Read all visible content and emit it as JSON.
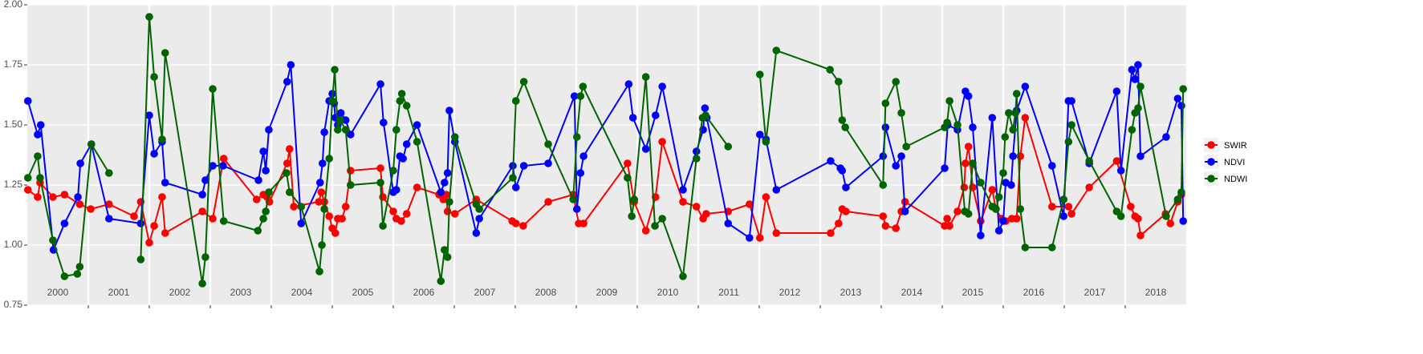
{
  "chart_data": {
    "type": "line",
    "xlim": [
      2000,
      2019
    ],
    "ylim": [
      0.75,
      2.0
    ],
    "yticks": [
      {
        "value": 0.75,
        "label": "0.75"
      },
      {
        "value": 1.0,
        "label": "1.00"
      },
      {
        "value": 1.25,
        "label": "1.25"
      },
      {
        "value": 1.5,
        "label": "1.50"
      },
      {
        "value": 1.75,
        "label": "1.75"
      },
      {
        "value": 2.0,
        "label": "2.00"
      }
    ],
    "xgrid": [
      2001,
      2002,
      2003,
      2004,
      2005,
      2006,
      2007,
      2008,
      2009,
      2010,
      2011,
      2012,
      2013,
      2014,
      2015,
      2016,
      2017,
      2018
    ],
    "x_labels": [
      "2000",
      "2001",
      "2002",
      "2003",
      "2004",
      "2005",
      "2006",
      "2007",
      "2008",
      "2009",
      "2010",
      "2011",
      "2012",
      "2013",
      "2014",
      "2015",
      "2016",
      "2017",
      "2018"
    ],
    "grid": true,
    "legend": "right",
    "series": [
      {
        "name": "SWIR",
        "color": "#ff0000",
        "x": [
          2000.01,
          2000.17,
          2000.21,
          2000.42,
          2000.61,
          2000.86,
          2001.04,
          2001.34,
          2001.75,
          2001.86,
          2002.0,
          2002.08,
          2002.21,
          2002.26,
          2002.87,
          2003.04,
          2003.22,
          2003.76,
          2003.87,
          2003.93,
          2003.97,
          2004.26,
          2004.3,
          2004.37,
          2004.78,
          2004.82,
          2004.87,
          2004.95,
          2005.0,
          2005.05,
          2005.09,
          2005.16,
          2005.22,
          2005.3,
          2005.79,
          2005.83,
          2006.0,
          2006.05,
          2006.13,
          2006.22,
          2006.39,
          2006.75,
          2006.82,
          2006.87,
          2006.89,
          2007.01,
          2007.36,
          2007.95,
          2008.01,
          2008.13,
          2008.54,
          2008.95,
          2009.04,
          2009.12,
          2009.84,
          2009.95,
          2010.14,
          2010.3,
          2010.41,
          2010.75,
          2010.97,
          2011.08,
          2011.13,
          2011.49,
          2011.84,
          2012.01,
          2012.11,
          2012.28,
          2013.17,
          2013.3,
          2013.36,
          2013.42,
          2014.03,
          2014.07,
          2014.24,
          2014.33,
          2014.39,
          2015.04,
          2015.08,
          2015.12,
          2015.25,
          2015.36,
          2015.38,
          2015.43,
          2015.5,
          2015.63,
          2015.82,
          2015.88,
          2015.97,
          2016.04,
          2016.14,
          2016.22,
          2016.28,
          2016.36,
          2016.8,
          2017.07,
          2017.12,
          2017.41,
          2017.86,
          2018.09,
          2018.16,
          2018.21,
          2018.25,
          2018.66,
          2018.74,
          2018.86,
          2018.92
        ],
        "values": [
          1.23,
          1.2,
          1.26,
          1.2,
          1.21,
          1.17,
          1.15,
          1.17,
          1.12,
          1.18,
          1.01,
          1.08,
          1.2,
          1.05,
          1.14,
          1.11,
          1.36,
          1.19,
          1.21,
          1.2,
          1.18,
          1.34,
          1.4,
          1.16,
          1.18,
          1.22,
          1.18,
          1.12,
          1.07,
          1.05,
          1.11,
          1.11,
          1.16,
          1.31,
          1.32,
          1.2,
          1.14,
          1.11,
          1.1,
          1.13,
          1.24,
          1.21,
          1.19,
          1.21,
          1.14,
          1.13,
          1.19,
          1.1,
          1.09,
          1.08,
          1.18,
          1.21,
          1.09,
          1.09,
          1.34,
          1.18,
          1.06,
          1.2,
          1.43,
          1.18,
          1.16,
          1.11,
          1.13,
          1.14,
          1.17,
          1.03,
          1.2,
          1.05,
          1.05,
          1.09,
          1.15,
          1.14,
          1.12,
          1.08,
          1.07,
          1.14,
          1.18,
          1.08,
          1.11,
          1.08,
          1.14,
          1.24,
          1.34,
          1.41,
          1.24,
          1.1,
          1.23,
          1.15,
          1.11,
          1.1,
          1.11,
          1.11,
          1.37,
          1.53,
          1.16,
          1.16,
          1.13,
          1.24,
          1.35,
          1.16,
          1.12,
          1.11,
          1.04,
          1.13,
          1.09,
          1.18,
          1.21
        ]
      },
      {
        "name": "NDVI",
        "color": "#0000ff",
        "x": [
          2000.01,
          2000.17,
          2000.22,
          2000.43,
          2000.61,
          2000.83,
          2000.87,
          2001.05,
          2001.34,
          2001.86,
          2002.0,
          2002.08,
          2002.21,
          2002.26,
          2002.87,
          2002.92,
          2003.04,
          2003.21,
          2003.79,
          2003.87,
          2003.91,
          2003.96,
          2004.26,
          2004.32,
          2004.49,
          2004.8,
          2004.84,
          2004.87,
          2004.95,
          2005.0,
          2005.03,
          2005.05,
          2005.09,
          2005.14,
          2005.22,
          2005.3,
          2005.79,
          2005.84,
          2006.0,
          2006.05,
          2006.11,
          2006.16,
          2006.22,
          2006.39,
          2006.78,
          2006.84,
          2006.89,
          2006.92,
          2007.01,
          2007.36,
          2007.41,
          2007.96,
          2008.01,
          2008.14,
          2008.54,
          2008.97,
          2009.01,
          2009.07,
          2009.12,
          2009.86,
          2009.93,
          2010.14,
          2010.3,
          2010.41,
          2010.75,
          2010.97,
          2011.08,
          2011.11,
          2011.14,
          2011.49,
          2011.84,
          2012.01,
          2012.11,
          2012.28,
          2013.17,
          2013.33,
          2013.36,
          2013.42,
          2014.03,
          2014.07,
          2014.24,
          2014.33,
          2014.39,
          2015.04,
          2015.09,
          2015.25,
          2015.38,
          2015.43,
          2015.5,
          2015.63,
          2015.82,
          2015.93,
          2016.0,
          2016.04,
          2016.13,
          2016.16,
          2016.22,
          2016.36,
          2016.8,
          2016.99,
          2017.07,
          2017.12,
          2017.41,
          2017.86,
          2017.93,
          2018.11,
          2018.16,
          2018.21,
          2018.25,
          2018.67,
          2018.86,
          2018.92,
          2018.95
        ],
        "values": [
          1.6,
          1.46,
          1.5,
          0.98,
          1.09,
          1.2,
          1.34,
          1.42,
          1.11,
          1.09,
          1.54,
          1.38,
          1.43,
          1.26,
          1.21,
          1.27,
          1.33,
          1.33,
          1.27,
          1.39,
          1.31,
          1.48,
          1.68,
          1.75,
          1.09,
          1.26,
          1.34,
          1.47,
          1.6,
          1.63,
          1.59,
          1.53,
          1.5,
          1.55,
          1.52,
          1.46,
          1.67,
          1.51,
          1.22,
          1.23,
          1.37,
          1.36,
          1.42,
          1.5,
          1.22,
          1.26,
          1.3,
          1.56,
          1.43,
          1.05,
          1.11,
          1.33,
          1.24,
          1.33,
          1.34,
          1.62,
          1.15,
          1.3,
          1.37,
          1.67,
          1.53,
          1.4,
          1.54,
          1.66,
          1.23,
          1.39,
          1.48,
          1.57,
          1.53,
          1.09,
          1.03,
          1.46,
          1.44,
          1.23,
          1.35,
          1.32,
          1.31,
          1.24,
          1.37,
          1.49,
          1.33,
          1.37,
          1.14,
          1.32,
          1.5,
          1.48,
          1.64,
          1.62,
          1.49,
          1.04,
          1.53,
          1.06,
          1.1,
          1.26,
          1.25,
          1.37,
          1.56,
          1.66,
          1.33,
          1.12,
          1.6,
          1.6,
          1.34,
          1.64,
          1.31,
          1.73,
          1.69,
          1.75,
          1.37,
          1.45,
          1.61,
          1.58,
          1.1
        ]
      },
      {
        "name": "NDWI",
        "color": "#006400",
        "x": [
          2000.01,
          2000.17,
          2000.21,
          2000.42,
          2000.61,
          2000.82,
          2000.86,
          2001.05,
          2001.34,
          null,
          2001.86,
          2002.0,
          2002.08,
          2002.21,
          2002.26,
          2002.87,
          2002.92,
          2003.04,
          2003.22,
          2003.78,
          2003.87,
          2003.91,
          2003.96,
          2004.25,
          2004.3,
          2004.49,
          2004.79,
          2004.83,
          2004.87,
          2004.95,
          2005.0,
          2005.04,
          2005.09,
          2005.13,
          2005.22,
          2005.3,
          2005.79,
          2005.83,
          2006.0,
          2006.05,
          2006.11,
          2006.14,
          2006.22,
          2006.39,
          2006.78,
          2006.84,
          2006.89,
          2006.92,
          2007.01,
          2007.36,
          2007.41,
          2007.96,
          2008.01,
          2008.14,
          2008.54,
          2008.95,
          2009.01,
          2009.07,
          2009.11,
          2009.84,
          2009.91,
          2009.95,
          2010.14,
          2010.29,
          2010.41,
          2010.75,
          2010.97,
          2011.07,
          2011.12,
          2011.49,
          null,
          2012.01,
          2012.11,
          2012.28,
          2013.16,
          2013.3,
          2013.36,
          2013.41,
          2014.03,
          2014.07,
          2014.24,
          2014.33,
          2014.41,
          2015.04,
          2015.08,
          2015.12,
          2015.25,
          2015.37,
          2015.43,
          2015.5,
          2015.63,
          2015.82,
          2015.88,
          2015.93,
          2016.0,
          2016.03,
          2016.09,
          2016.16,
          2016.2,
          2016.22,
          2016.28,
          2016.36,
          2016.8,
          2016.99,
          2017.07,
          2017.12,
          2017.41,
          2017.86,
          2017.93,
          2018.11,
          2018.16,
          2018.21,
          2018.25,
          2018.67,
          2018.86,
          2018.92,
          2018.95
        ],
        "values": [
          1.28,
          1.37,
          1.28,
          1.02,
          0.87,
          0.88,
          0.91,
          1.42,
          1.3,
          null,
          0.94,
          1.95,
          1.7,
          1.44,
          1.8,
          0.84,
          0.95,
          1.65,
          1.1,
          1.06,
          1.11,
          1.14,
          1.22,
          1.3,
          1.22,
          1.16,
          0.89,
          1.0,
          1.15,
          1.36,
          1.6,
          1.73,
          1.48,
          1.52,
          1.48,
          1.25,
          1.26,
          1.08,
          1.31,
          1.48,
          1.6,
          1.63,
          1.58,
          1.43,
          0.85,
          0.98,
          0.95,
          1.18,
          1.45,
          1.17,
          1.15,
          1.28,
          1.6,
          1.68,
          1.42,
          1.19,
          1.45,
          1.62,
          1.66,
          1.28,
          1.12,
          1.19,
          1.7,
          1.08,
          1.11,
          0.87,
          1.36,
          1.53,
          1.54,
          1.41,
          null,
          1.71,
          1.43,
          1.81,
          1.73,
          1.68,
          1.52,
          1.49,
          1.25,
          1.59,
          1.68,
          1.55,
          1.41,
          1.49,
          1.51,
          1.6,
          1.5,
          1.14,
          1.13,
          1.34,
          1.26,
          1.16,
          1.15,
          1.2,
          1.3,
          1.45,
          1.55,
          1.48,
          1.55,
          1.63,
          1.15,
          0.99,
          0.99,
          1.19,
          1.43,
          1.5,
          1.35,
          1.14,
          1.12,
          1.48,
          1.55,
          1.57,
          1.66,
          1.12,
          1.19,
          1.22,
          1.65
        ]
      }
    ]
  }
}
